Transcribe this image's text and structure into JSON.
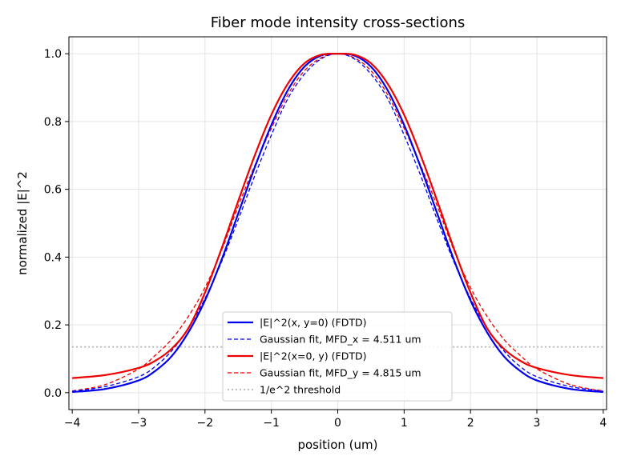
{
  "chart_data": {
    "type": "line",
    "title": "Fiber mode intensity cross-sections",
    "xlabel": "position (um)",
    "ylabel": "normalized |E|^2",
    "xlim": [
      -4.05,
      4.05
    ],
    "ylim": [
      -0.05,
      1.05
    ],
    "xticks": [
      -4,
      -3,
      -2,
      -1,
      0,
      1,
      2,
      3,
      4
    ],
    "xtick_labels": [
      "−4",
      "−3",
      "−2",
      "−1",
      "0",
      "1",
      "2",
      "3",
      "4"
    ],
    "yticks": [
      0.0,
      0.2,
      0.4,
      0.6,
      0.8,
      1.0
    ],
    "ytick_labels": [
      "0.0",
      "0.2",
      "0.4",
      "0.6",
      "0.8",
      "1.0"
    ],
    "grid": true,
    "legend_position": "lower-center",
    "x": [
      -4.0,
      -3.5,
      -3.0,
      -2.75,
      -2.5,
      -2.25,
      -2.0,
      -1.75,
      -1.5,
      -1.25,
      -1.0,
      -0.75,
      -0.5,
      -0.25,
      0.0,
      0.25,
      0.5,
      0.75,
      1.0,
      1.25,
      1.5,
      1.75,
      2.0,
      2.25,
      2.5,
      2.75,
      3.0,
      3.5,
      4.0
    ],
    "series": [
      {
        "name": "|E|^2(x, y=0) (FDTD)",
        "color": "#0000ee",
        "style": "solid",
        "values": [
          0.002,
          0.011,
          0.036,
          0.064,
          0.108,
          0.178,
          0.272,
          0.392,
          0.528,
          0.665,
          0.79,
          0.893,
          0.962,
          0.995,
          1.0,
          0.995,
          0.962,
          0.893,
          0.79,
          0.665,
          0.528,
          0.392,
          0.272,
          0.178,
          0.108,
          0.064,
          0.036,
          0.011,
          0.002
        ]
      },
      {
        "name": "Gaussian fit, MFD_x = 4.511 um",
        "color": "#0000ee",
        "style": "dashed",
        "values": [
          0.004,
          0.018,
          0.047,
          0.077,
          0.124,
          0.19,
          0.278,
          0.386,
          0.51,
          0.64,
          0.76,
          0.868,
          0.94,
          0.985,
          1.0,
          0.985,
          0.94,
          0.868,
          0.76,
          0.64,
          0.51,
          0.386,
          0.278,
          0.19,
          0.124,
          0.077,
          0.047,
          0.018,
          0.004
        ]
      },
      {
        "name": "|E|^2(x=0, y) (FDTD)",
        "color": "#ee0000",
        "style": "solid",
        "values": [
          0.043,
          0.052,
          0.073,
          0.094,
          0.13,
          0.19,
          0.295,
          0.425,
          0.565,
          0.7,
          0.82,
          0.912,
          0.972,
          0.997,
          1.0,
          0.997,
          0.972,
          0.912,
          0.82,
          0.7,
          0.565,
          0.425,
          0.295,
          0.19,
          0.13,
          0.094,
          0.073,
          0.052,
          0.043
        ]
      },
      {
        "name": "Gaussian fit, MFD_y = 4.815 um",
        "color": "#ee0000",
        "style": "dashed",
        "values": [
          0.005,
          0.024,
          0.07,
          0.11,
          0.158,
          0.225,
          0.31,
          0.42,
          0.55,
          0.67,
          0.78,
          0.88,
          0.95,
          0.988,
          1.0,
          0.988,
          0.95,
          0.88,
          0.78,
          0.67,
          0.55,
          0.42,
          0.31,
          0.225,
          0.158,
          0.11,
          0.07,
          0.024,
          0.005
        ]
      },
      {
        "name": "1/e^2 threshold",
        "color": "#b3b3b3",
        "style": "dotted",
        "values": [
          0.135,
          0.135,
          0.135,
          0.135,
          0.135,
          0.135,
          0.135,
          0.135,
          0.135,
          0.135,
          0.135,
          0.135,
          0.135,
          0.135,
          0.135,
          0.135,
          0.135,
          0.135,
          0.135,
          0.135,
          0.135,
          0.135,
          0.135,
          0.135,
          0.135,
          0.135,
          0.135,
          0.135,
          0.135
        ]
      }
    ]
  }
}
